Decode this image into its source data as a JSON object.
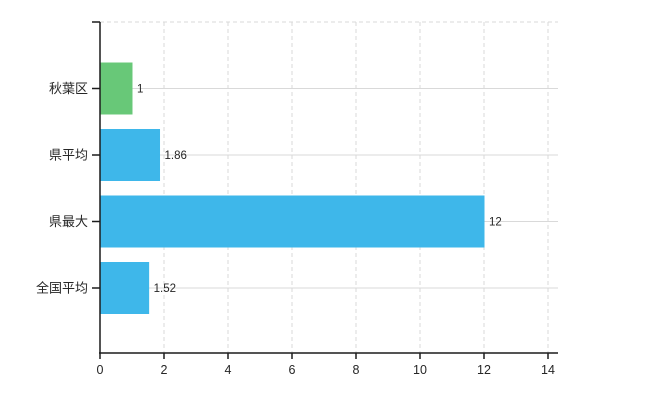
{
  "chart_data": {
    "type": "bar",
    "orientation": "horizontal",
    "title": "",
    "xlabel": "",
    "ylabel": "",
    "categories": [
      "秋葉区",
      "県平均",
      "県最大",
      "全国平均"
    ],
    "values": [
      1,
      1.86,
      12,
      1.52
    ],
    "value_labels": [
      "1",
      "1.86",
      "12",
      "1.52"
    ],
    "bar_colors": [
      "#68c878",
      "#3eb7ea",
      "#3eb7ea",
      "#3eb7ea"
    ],
    "x_ticks": [
      0,
      2,
      4,
      6,
      8,
      10,
      12,
      14
    ],
    "xlim": [
      0,
      14
    ],
    "grid": true,
    "legend_position": "none",
    "colors": {
      "axis": "#1c1c1c",
      "grid": "#d9d9d9",
      "text": "#262626",
      "background": "#ffffff",
      "bar_blue": "#3eb7ea",
      "bar_green": "#68c878"
    }
  }
}
